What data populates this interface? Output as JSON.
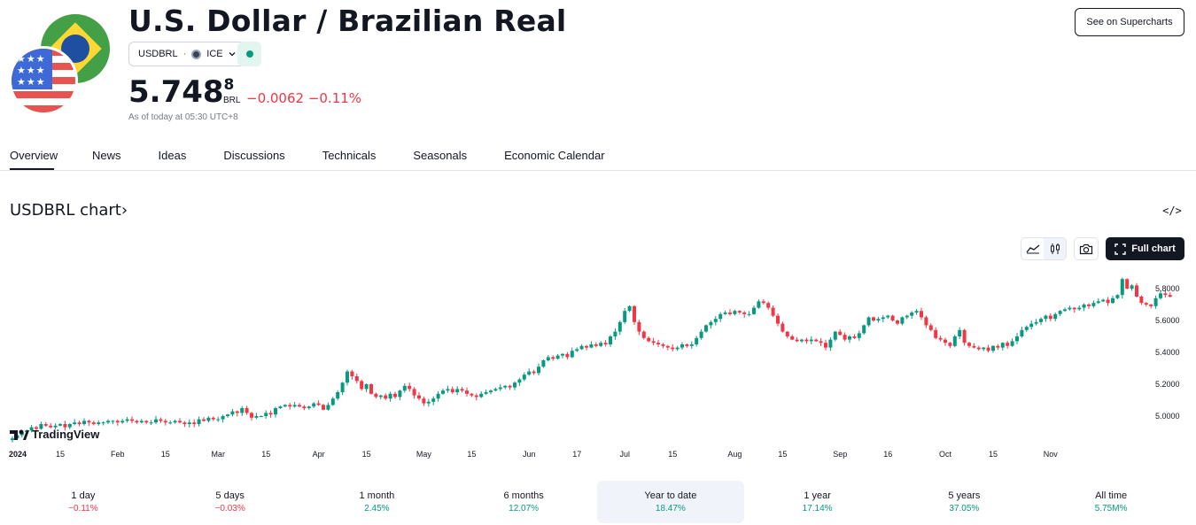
{
  "header": {
    "title": "U.S. Dollar / Brazilian Real",
    "symbol": "USDBRL",
    "separator": "·",
    "exchange": "ICE",
    "price_main": "5.748",
    "price_sup": "8",
    "currency": "BRL",
    "change": "−0.0062 −0.11%",
    "as_of": "As of today at 05:30 UTC+8",
    "supercharts_label": "See on Supercharts"
  },
  "tabs": [
    {
      "label": "Overview",
      "active": true
    },
    {
      "label": "News"
    },
    {
      "label": "Ideas"
    },
    {
      "label": "Discussions"
    },
    {
      "label": "Technicals"
    },
    {
      "label": "Seasonals"
    },
    {
      "label": "Economic Calendar"
    }
  ],
  "chart_section": {
    "heading": "USDBRL chart",
    "heading_arrow": "›",
    "embed_label": "</>",
    "full_chart_label": "Full chart",
    "logo_text": "TradingView"
  },
  "colors": {
    "up": "#089981",
    "down": "#f23645",
    "dark": "#131722"
  },
  "icons": {
    "area_style": "area-chart-icon",
    "candle_style": "candlestick-icon",
    "snapshot": "camera-icon",
    "fullscreen": "fullscreen-icon",
    "embed": "code-icon"
  },
  "chart_data": {
    "type": "candlestick",
    "y_ticks": [
      "5.0000",
      "5.2000",
      "5.4000",
      "5.6000",
      "5.8000"
    ],
    "y_range": [
      4.87,
      5.95
    ],
    "x_tick_labels": [
      "2024",
      "15",
      "Feb",
      "15",
      "Mar",
      "15",
      "Apr",
      "15",
      "May",
      "15",
      "Jun",
      "17",
      "Jul",
      "15",
      "Aug",
      "15",
      "Sep",
      "16",
      "Oct",
      "15",
      "Nov"
    ],
    "x_tick_positions": [
      0,
      10,
      22,
      32,
      43,
      53,
      64,
      74,
      86,
      96,
      108,
      118,
      128,
      138,
      151,
      161,
      173,
      183,
      195,
      205,
      217
    ],
    "close": [
      4.86,
      4.88,
      4.9,
      4.91,
      4.93,
      4.92,
      4.95,
      4.94,
      4.93,
      4.94,
      4.95,
      4.93,
      4.95,
      4.96,
      4.95,
      4.97,
      4.96,
      4.95,
      4.96,
      4.96,
      4.97,
      4.97,
      4.96,
      4.97,
      4.98,
      4.97,
      4.96,
      4.97,
      4.96,
      4.96,
      4.98,
      4.97,
      4.96,
      4.96,
      4.97,
      4.96,
      4.95,
      4.96,
      4.95,
      4.98,
      4.97,
      4.99,
      4.98,
      4.98,
      5.0,
      5.01,
      5.03,
      5.02,
      5.05,
      5.02,
      4.99,
      5.0,
      5.0,
      5.02,
      5.01,
      5.05,
      5.06,
      5.07,
      5.06,
      5.07,
      5.06,
      5.05,
      5.06,
      5.08,
      5.07,
      5.04,
      5.07,
      5.11,
      5.15,
      5.21,
      5.28,
      5.25,
      5.22,
      5.17,
      5.2,
      5.14,
      5.12,
      5.13,
      5.11,
      5.14,
      5.12,
      5.16,
      5.19,
      5.17,
      5.13,
      5.11,
      5.08,
      5.09,
      5.11,
      5.14,
      5.16,
      5.17,
      5.15,
      5.17,
      5.16,
      5.14,
      5.13,
      5.12,
      5.14,
      5.15,
      5.16,
      5.17,
      5.18,
      5.19,
      5.18,
      5.21,
      5.23,
      5.26,
      5.28,
      5.27,
      5.31,
      5.35,
      5.37,
      5.36,
      5.38,
      5.39,
      5.37,
      5.41,
      5.42,
      5.44,
      5.43,
      5.45,
      5.44,
      5.46,
      5.45,
      5.5,
      5.53,
      5.59,
      5.66,
      5.69,
      5.59,
      5.53,
      5.49,
      5.47,
      5.46,
      5.45,
      5.44,
      5.43,
      5.42,
      5.43,
      5.45,
      5.44,
      5.45,
      5.49,
      5.53,
      5.57,
      5.59,
      5.61,
      5.64,
      5.65,
      5.64,
      5.66,
      5.65,
      5.64,
      5.64,
      5.68,
      5.72,
      5.71,
      5.68,
      5.63,
      5.58,
      5.53,
      5.5,
      5.48,
      5.47,
      5.48,
      5.47,
      5.48,
      5.47,
      5.46,
      5.43,
      5.48,
      5.53,
      5.51,
      5.48,
      5.5,
      5.49,
      5.52,
      5.57,
      5.62,
      5.6,
      5.61,
      5.62,
      5.63,
      5.6,
      5.58,
      5.62,
      5.63,
      5.65,
      5.66,
      5.62,
      5.57,
      5.54,
      5.49,
      5.48,
      5.46,
      5.44,
      5.5,
      5.54,
      5.46,
      5.44,
      5.43,
      5.42,
      5.43,
      5.41,
      5.44,
      5.43,
      5.46,
      5.44,
      5.47,
      5.5,
      5.54,
      5.56,
      5.58,
      5.59,
      5.61,
      5.63,
      5.61,
      5.64,
      5.66,
      5.67,
      5.68,
      5.67,
      5.68,
      5.7,
      5.69,
      5.71,
      5.72,
      5.73,
      5.71,
      5.74,
      5.76,
      5.86,
      5.8,
      5.82,
      5.75,
      5.71,
      5.7,
      5.69,
      5.74,
      5.77,
      5.76,
      5.749
    ],
    "last_price": 5.7488
  },
  "periods": [
    {
      "label": "1 day",
      "value": "−0.11%",
      "sign": "neg"
    },
    {
      "label": "5 days",
      "value": "−0.03%",
      "sign": "neg"
    },
    {
      "label": "1 month",
      "value": "2.45%",
      "sign": "pos"
    },
    {
      "label": "6 months",
      "value": "12.07%",
      "sign": "pos"
    },
    {
      "label": "Year to date",
      "value": "18.47%",
      "sign": "pos",
      "selected": true
    },
    {
      "label": "1 year",
      "value": "17.14%",
      "sign": "pos"
    },
    {
      "label": "5 years",
      "value": "37.05%",
      "sign": "pos"
    },
    {
      "label": "All time",
      "value": "5.75M%",
      "sign": "pos"
    }
  ]
}
